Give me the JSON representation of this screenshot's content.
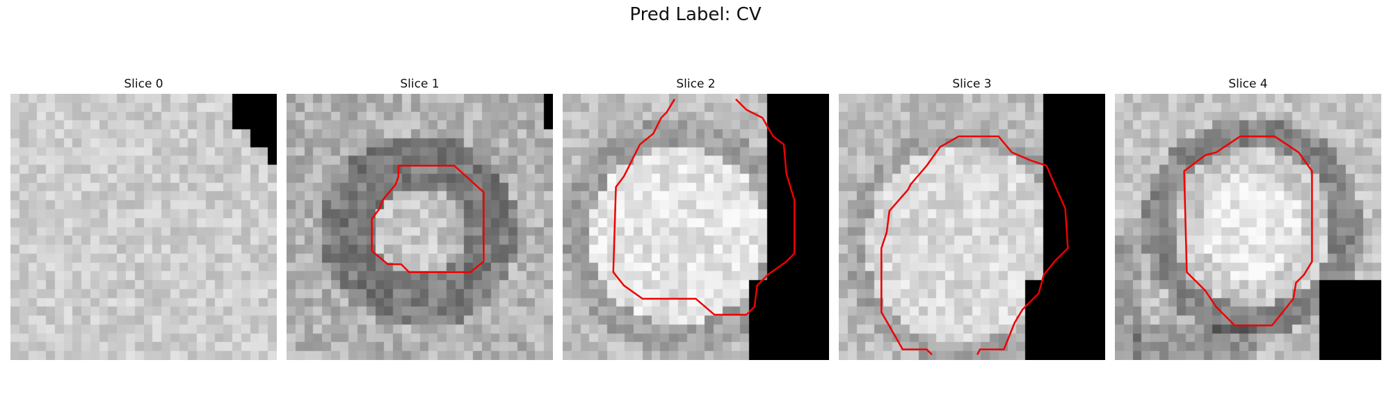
{
  "figure": {
    "title": "Pred Label: CV",
    "contour_color": "#ee0000",
    "mask_color": "#000000"
  },
  "slices": [
    {
      "title": "Slice 0"
    },
    {
      "title": "Slice 1"
    },
    {
      "title": "Slice 2"
    },
    {
      "title": "Slice 3"
    },
    {
      "title": "Slice 4"
    }
  ]
}
